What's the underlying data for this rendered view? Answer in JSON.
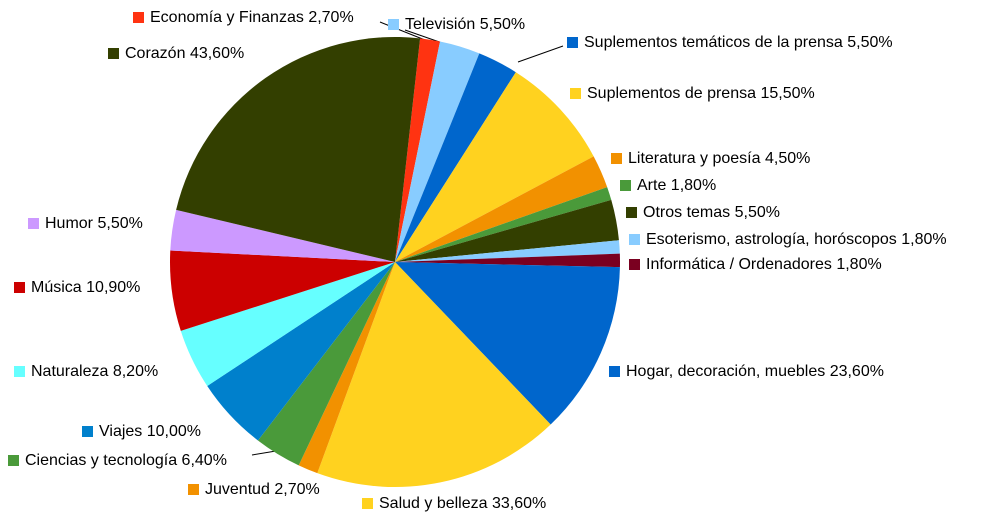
{
  "chart_data": {
    "type": "pie",
    "categories": [
      "Economía y Finanzas",
      "Televisión",
      "Suplementos temáticos de la prensa",
      "Suplementos de prensa",
      "Literatura y poesía",
      "Arte",
      "Otros temas",
      "Esoterismo, astrología, horóscopos",
      "Informática / Ordenadores",
      "Hogar, decoración, muebles",
      "Salud y belleza",
      "Juventud",
      "Ciencias y tecnología",
      "Viajes",
      "Naturaleza",
      "Música",
      "Humor",
      "Corazón"
    ],
    "values": [
      2.7,
      5.5,
      5.5,
      15.5,
      4.5,
      1.8,
      5.5,
      1.8,
      1.8,
      23.6,
      33.6,
      2.7,
      6.4,
      10.0,
      8.2,
      10.9,
      5.5,
      43.6
    ],
    "value_labels": [
      "2,70%",
      "5,50%",
      "5,50%",
      "15,50%",
      "4,50%",
      "1,80%",
      "5,50%",
      "1,80%",
      "1,80%",
      "23,60%",
      "33,60%",
      "2,70%",
      "6,40%",
      "10,00%",
      "8,20%",
      "10,90%",
      "5,50%",
      "43,60%"
    ],
    "colors": [
      "#ff3311",
      "#88ccff",
      "#0066cc",
      "#ffd21f",
      "#f29100",
      "#4a9a3a",
      "#333f00",
      "#88ccff",
      "#7a0020",
      "#0066cc",
      "#ffd21f",
      "#f29100",
      "#4a9a3a",
      "#0080cc",
      "#66ffff",
      "#cc0000",
      "#cc99ff",
      "#333f00"
    ]
  }
}
